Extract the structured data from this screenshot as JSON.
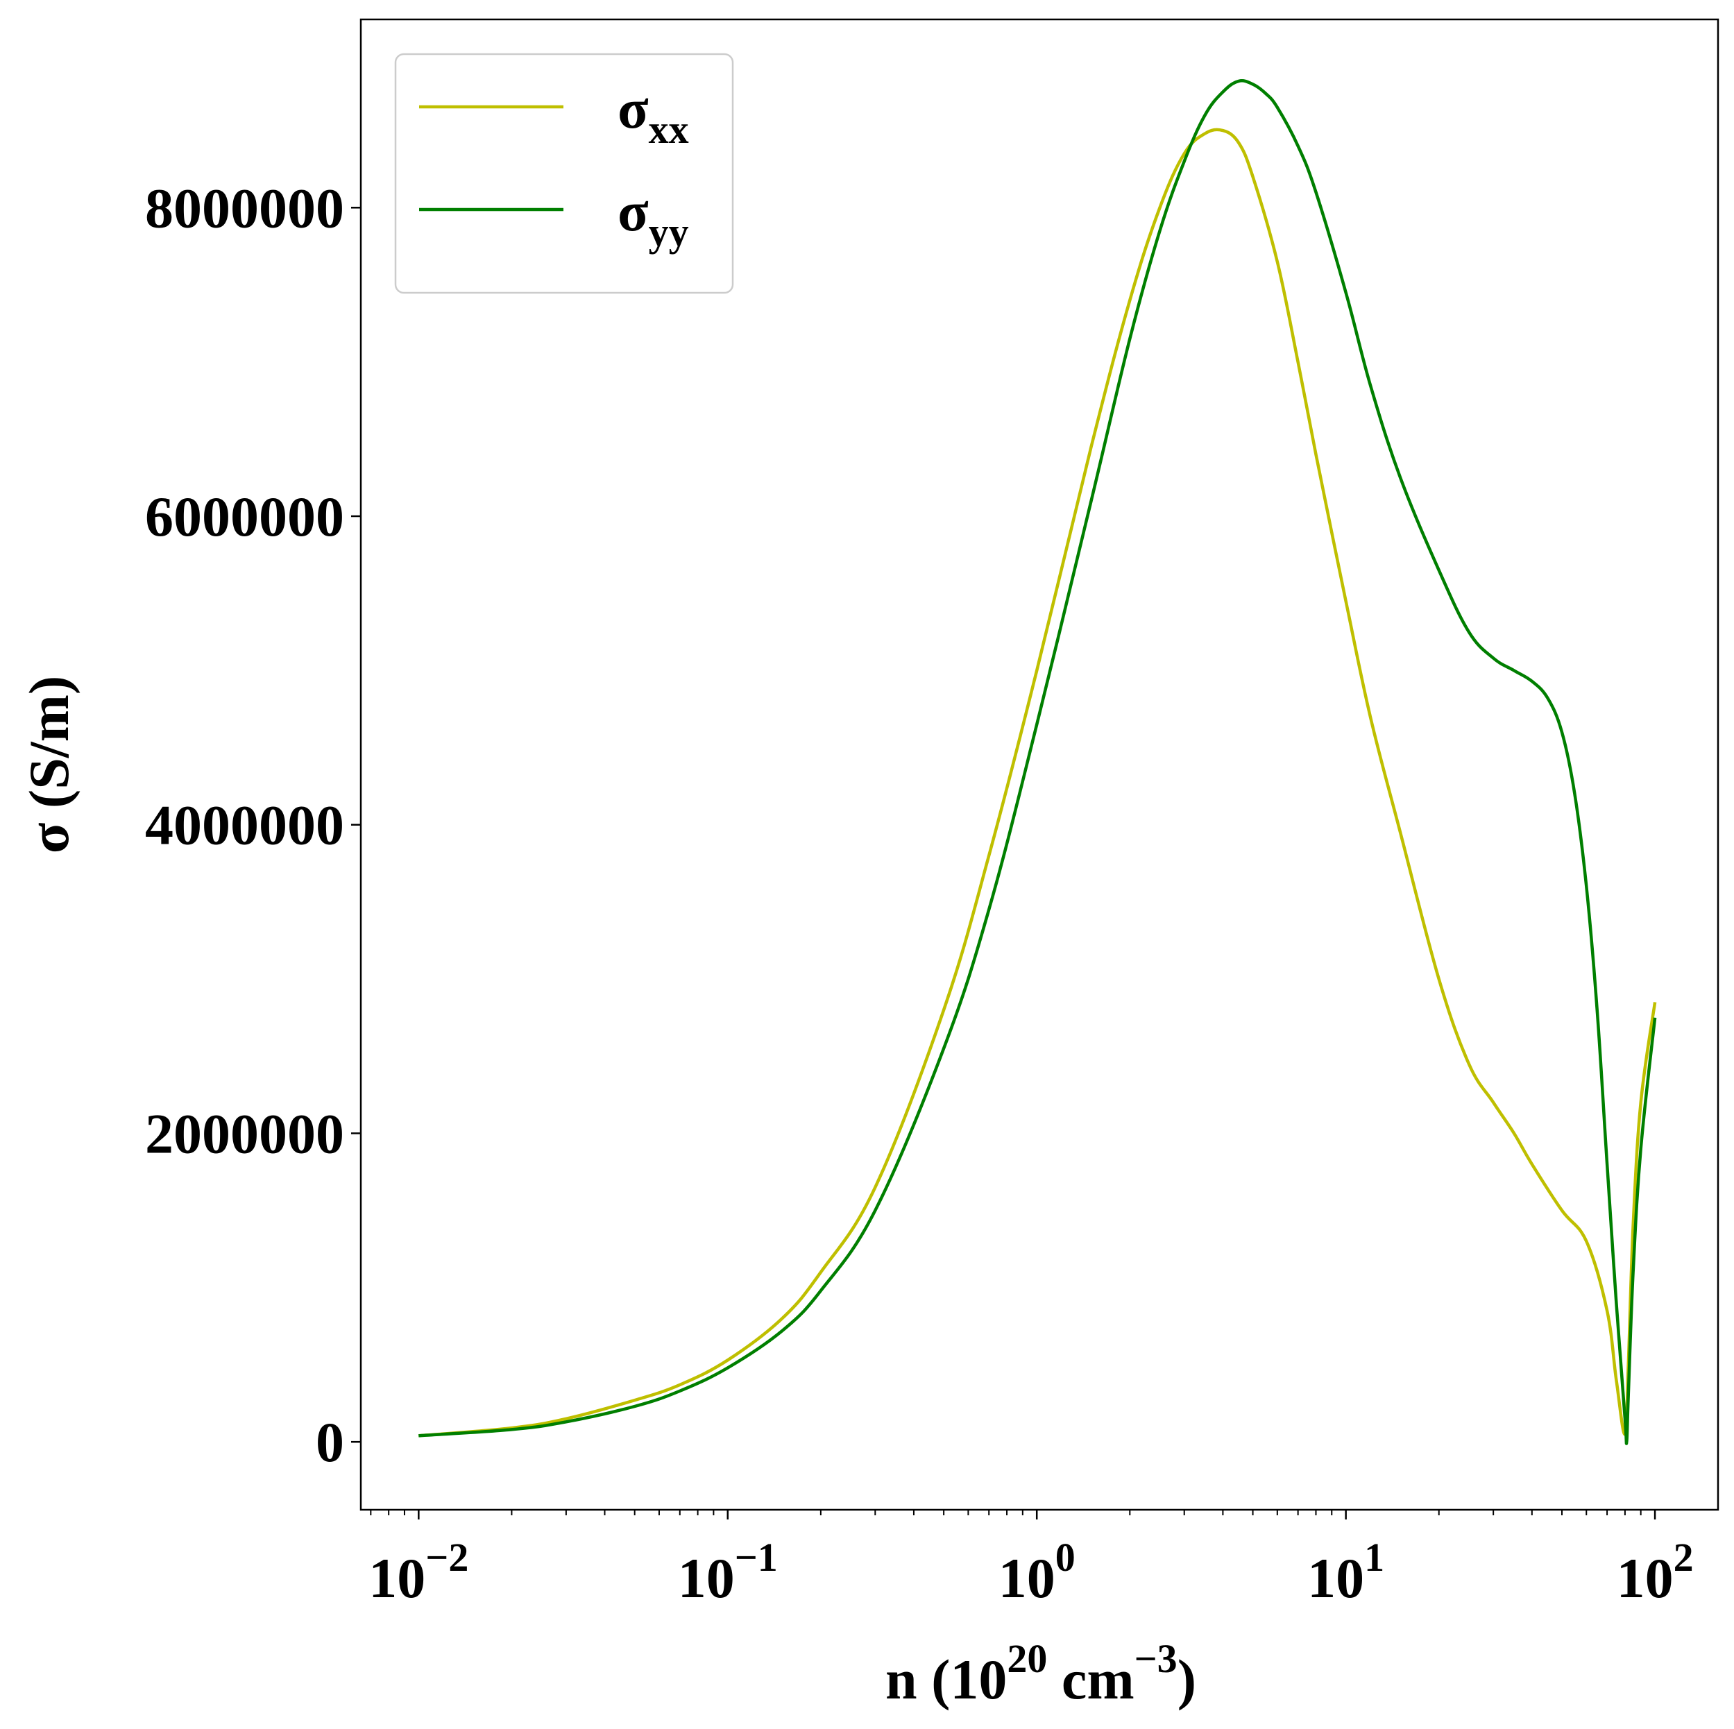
{
  "chart_data": {
    "type": "line",
    "xlabel": {
      "base": "n (10",
      "exp": "20",
      "mid": " cm",
      "exp2": "−3",
      "end": ")"
    },
    "ylabel": "σ (S/m)",
    "x_scale": "log",
    "xlim": [
      0.0065,
      160
    ],
    "ylim": [
      -440000,
      9220000
    ],
    "x_ticks": [
      {
        "value": 0.01,
        "base": "10",
        "exp": "−2"
      },
      {
        "value": 0.1,
        "base": "10",
        "exp": "−1"
      },
      {
        "value": 1,
        "base": "10",
        "exp": "0"
      },
      {
        "value": 10,
        "base": "10",
        "exp": "1"
      },
      {
        "value": 100,
        "base": "10",
        "exp": "2"
      }
    ],
    "y_ticks": [
      {
        "value": 0,
        "label": "0"
      },
      {
        "value": 2000000,
        "label": "2000000"
      },
      {
        "value": 4000000,
        "label": "4000000"
      },
      {
        "value": 6000000,
        "label": "6000000"
      },
      {
        "value": 8000000,
        "label": "8000000"
      }
    ],
    "grid": false,
    "legend_position": "top-left",
    "series": [
      {
        "name": "σ",
        "subscript": "xx",
        "color": "#bfbf00",
        "x": [
          0.01,
          0.02,
          0.03,
          0.05,
          0.07,
          0.1,
          0.15,
          0.2,
          0.3,
          0.5,
          0.7,
          1.0,
          1.5,
          2.0,
          2.5,
          3.0,
          3.5,
          4.0,
          4.5,
          5.0,
          6.0,
          7.0,
          8.0,
          10,
          12,
          15,
          20,
          25,
          30,
          35,
          40,
          50,
          60,
          70,
          75,
          80,
          82,
          85,
          90,
          100
        ],
        "y": [
          40000,
          90000,
          150000,
          270000,
          370000,
          530000,
          800000,
          1100000,
          1650000,
          2800000,
          3800000,
          5000000,
          6450000,
          7400000,
          8000000,
          8350000,
          8480000,
          8500000,
          8420000,
          8200000,
          7650000,
          7000000,
          6400000,
          5450000,
          4700000,
          3950000,
          3000000,
          2450000,
          2200000,
          2000000,
          1800000,
          1500000,
          1300000,
          850000,
          400000,
          50000,
          500000,
          1400000,
          2200000,
          2850000
        ]
      },
      {
        "name": "σ",
        "subscript": "yy",
        "color": "#007f00",
        "x": [
          0.01,
          0.02,
          0.03,
          0.05,
          0.07,
          0.1,
          0.15,
          0.2,
          0.3,
          0.5,
          0.7,
          1.0,
          1.5,
          2.0,
          2.5,
          3.0,
          3.5,
          4.0,
          4.5,
          5.0,
          5.5,
          6.0,
          7.0,
          8.0,
          10,
          12,
          15,
          20,
          25,
          30,
          35,
          40,
          45,
          50,
          55,
          60,
          65,
          70,
          75,
          80,
          81,
          82,
          85,
          90,
          100
        ],
        "y": [
          40000,
          80000,
          130000,
          230000,
          330000,
          480000,
          720000,
          980000,
          1500000,
          2550000,
          3450000,
          4650000,
          6100000,
          7150000,
          7850000,
          8300000,
          8600000,
          8750000,
          8820000,
          8800000,
          8740000,
          8650000,
          8400000,
          8100000,
          7450000,
          6850000,
          6250000,
          5650000,
          5250000,
          5080000,
          5000000,
          4930000,
          4820000,
          4600000,
          4200000,
          3600000,
          2800000,
          1800000,
          900000,
          150000,
          0,
          300000,
          1100000,
          1900000,
          2750000
        ]
      }
    ]
  }
}
